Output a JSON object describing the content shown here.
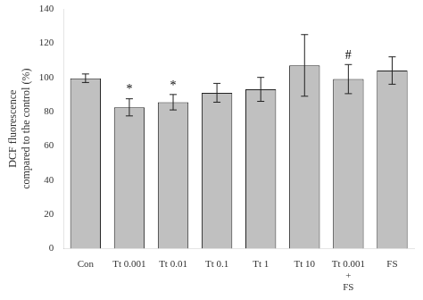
{
  "chart_data": {
    "type": "bar",
    "categories": [
      "Con",
      "Tt 0.001",
      "Tt 0.01",
      "Tt 0.1",
      "Tt 1",
      "Tt 10",
      "Tt 0.001\n+\nFS",
      "FS"
    ],
    "values": [
      99.5,
      82.5,
      85.5,
      91.0,
      93.0,
      107.0,
      99.0,
      104.0
    ],
    "errors": [
      2.5,
      5.0,
      4.5,
      5.5,
      7.0,
      18.0,
      8.5,
      8.0
    ],
    "color": "#c0c0c0",
    "annotations": [
      {
        "category": "Tt 0.001",
        "text": "*"
      },
      {
        "category": "Tt 0.01",
        "text": "*"
      },
      {
        "category": "Tt 0.001\n+\nFS",
        "text": "#"
      }
    ],
    "ylabel": "DCF fluorescence\ncompared to the control (%)",
    "ylim": [
      0,
      140
    ],
    "yticks": [
      0,
      20,
      40,
      60,
      80,
      100,
      120,
      140
    ],
    "grid": false
  }
}
